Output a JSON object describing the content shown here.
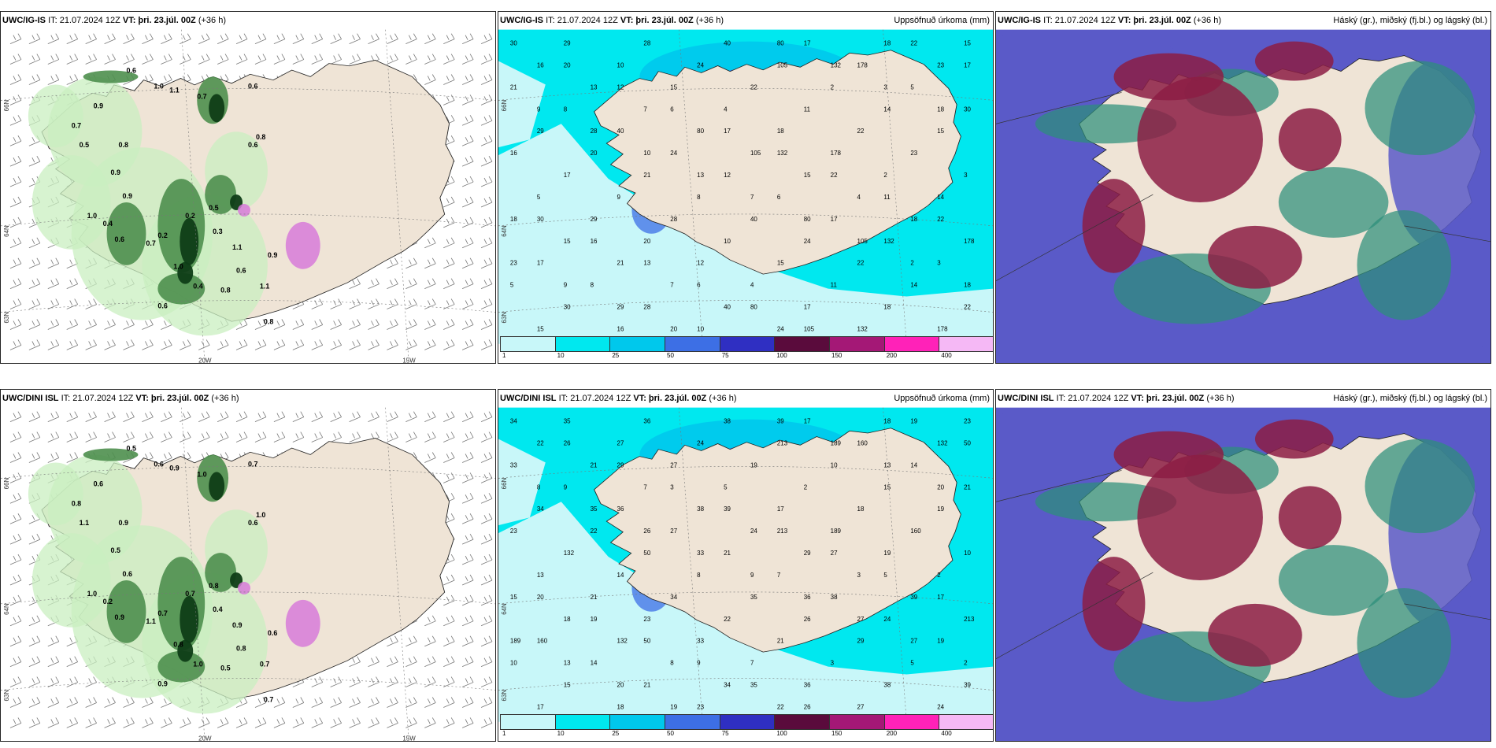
{
  "colors": {
    "land": "#efe4d6",
    "sea": "#ffffff",
    "precip_light": "#c9efc0",
    "precip_mid": "#4e8f4e",
    "precip_heavy": "#0f3d17",
    "precip_violet": "#d77bd9",
    "cloud_high": "#8c1d44",
    "cloud_mid": "#2c8f7a",
    "cloud_low": "#5a5ac8",
    "accum_bg": "#00e6ef"
  },
  "rows": [
    {
      "model": "UWC/IG-IS",
      "init": "IT: 21.07.2024 12Z",
      "valid_label": "VT:",
      "valid_value": "þri. 23.júl. 00Z",
      "lead": "(+36 h)",
      "precip_title": "Uppsöfnuð úrkoma (mm)",
      "cloud_title": "Háský (gr.), miðský (fj.bl.) og lágský (bl.)",
      "lat_labels": [
        "66N",
        "64N",
        "63N"
      ],
      "lon_labels": [
        "20W",
        "15W"
      ],
      "rain_values": [
        "0.6",
        "1.0",
        "1.1",
        "0.7",
        "0.9",
        "0.6",
        "0.7",
        "0.5",
        "0.8",
        "0.9",
        "1.0",
        "0.4",
        "0.2",
        "0.5",
        "0.6",
        "0.8",
        "1.1",
        "0.3",
        "0.2",
        "0.9",
        "1.0",
        "0.7",
        "0.6",
        "0.8",
        "1.1",
        "0.6",
        "0.9",
        "0.4",
        "0.6",
        "0.8"
      ],
      "accum_values": [
        "30",
        "29",
        "28",
        "40",
        "80",
        "17",
        "18",
        "22",
        "15",
        "16",
        "20",
        "10",
        "24",
        "105",
        "132",
        "178",
        "23",
        "17",
        "21",
        "13",
        "12",
        "15",
        "22",
        "2",
        "3",
        "5",
        "9",
        "8",
        "7",
        "6",
        "4",
        "11",
        "14",
        "18"
      ]
    },
    {
      "model": "UWC/DINI ISL",
      "init": "IT: 21.07.2024 12Z",
      "valid_label": "VT:",
      "valid_value": "þri. 23.júl. 00Z",
      "lead": "(+36 h)",
      "precip_title": "Uppsöfnuð úrkoma (mm)",
      "cloud_title": "Háský (gr.), miðský (fj.bl.) og lágský (bl.)",
      "lat_labels": [
        "66N",
        "64N",
        "63N"
      ],
      "lon_labels": [
        "20W",
        "15W"
      ],
      "rain_values": [
        "0.5",
        "0.6",
        "0.9",
        "1.0",
        "0.6",
        "0.7",
        "0.8",
        "1.1",
        "0.9",
        "0.5",
        "1.0",
        "0.2",
        "0.7",
        "0.8",
        "0.6",
        "1.0",
        "0.9",
        "0.4",
        "0.7",
        "0.6",
        "0.8",
        "1.1",
        "0.9",
        "0.5",
        "0.7",
        "0.8",
        "0.6",
        "1.0",
        "0.9",
        "0.7"
      ],
      "accum_values": [
        "34",
        "35",
        "36",
        "38",
        "39",
        "17",
        "18",
        "19",
        "23",
        "22",
        "26",
        "27",
        "24",
        "213",
        "189",
        "160",
        "132",
        "50",
        "33",
        "21",
        "29",
        "27",
        "19",
        "10",
        "13",
        "14",
        "8",
        "9",
        "7",
        "3",
        "5",
        "2",
        "15",
        "20",
        "21"
      ]
    }
  ],
  "colorbar": {
    "labels": [
      "1",
      "10",
      "25",
      "50",
      "75",
      "100",
      "150",
      "200",
      "400"
    ],
    "colors": [
      "#c8f7f9",
      "#00e8ef",
      "#00c8ec",
      "#3d6fe5",
      "#2f2fc2",
      "#5a0b3c",
      "#a41876",
      "#ff22b8",
      "#f5b8f5"
    ]
  }
}
